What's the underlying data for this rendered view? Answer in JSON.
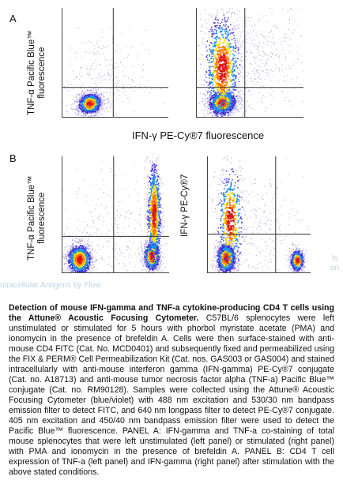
{
  "labels": {
    "panel_a": "A",
    "panel_b": "B",
    "ylabel_a_line1": "TNF-α Pacific Blue™",
    "ylabel_a_line2": "fluorescence",
    "ylabel_b_left_line1": "TNF-α Pacific Blue™",
    "ylabel_b_left_line2": "fluorescence",
    "ylabel_b_right": "IFN-γ PE-Cy®7",
    "xlabel_a": "IFN-γ PE-Cy®7 fluorescence",
    "ghost_text_left": "ntracellular Antigens by Flow",
    "ghost_text_right_1": "ls",
    "ghost_text_right_2": "on"
  },
  "caption": {
    "title": "Detection of mouse IFN-gamma and TNF-a cytokine-producing CD4 T cells using the Attune® Acoustic Focusing Cytometer.",
    "body": "C57BL/6 splenocytes were left unstimulated or stimulated for 5 hours with phorbol myristate acetate (PMA) and ionomycin in the presence of brefeldin A. Cells were then surface-stained with anti-mouse CD4 FITC (Cat. No. MCD0401) and subsequently fixed and permeabilized using the FIX & PERM® Cell Permeabilization Kit (Cat. nos. GAS003 or GAS004) and stained intracellularly with anti-mouse interferon gamma (IFN-gamma) PE-Cy®7 conjugate (Cat. no. A18713) and anti-mouse tumor necrosis factor alpha (TNF-a) Pacific Blue™ conjugate (Cat. no. RM90128). Samples were collected using the Attune® Acoustic Focusing Cytometer (blue/violet) with 488 nm excitation and 530/30 nm bandpass emission filter to detect FITC, and 640 nm longpass filter to detect PE-Cy®7 conjugate. 405 nm excitation and 450/40 nm bandpass emission filter were used to detect the Pacific Blue™ fluorescence. PANEL A: IFN-gamma and TNF-a co-staining of total mouse splenocytes that were left unstimulated (left panel) or stimulated (right panel) with PMA and ionomycin in the presence of brefeldin A. PANEL B: CD4 T cell expression of TNF-a (left panel) and IFN-gamma (right panel) after stimulation with the above stated conditions."
  },
  "colors": {
    "density_low": "#a99ce0",
    "density_mid": "#3b2fd6",
    "density_hi1": "#1f8fe8",
    "density_hi2": "#ffe000",
    "density_hi3": "#ff7a00",
    "density_peak": "#e01010",
    "gate": "#333333"
  },
  "chart_data": [
    {
      "type": "scatter",
      "panel": "A-left",
      "xlabel": "IFN-γ PE-Cy®7 fluorescence",
      "ylabel": "TNF-α Pacific Blue™ fluorescence",
      "xlim": [
        0,
        1
      ],
      "ylim": [
        0,
        1
      ],
      "gate": {
        "x": 0.48,
        "y": 0.27
      },
      "populations": [
        {
          "cx": 0.26,
          "cy": 0.12,
          "sx": 0.06,
          "sy": 0.05,
          "n": 1400,
          "rot": 0.35
        },
        {
          "cx": 0.35,
          "cy": 0.35,
          "sx": 0.22,
          "sy": 0.22,
          "n": 320,
          "rot": 0
        }
      ]
    },
    {
      "type": "scatter",
      "panel": "A-right",
      "xlabel": "IFN-γ PE-Cy®7 fluorescence",
      "ylabel": "TNF-α Pacific Blue™ fluorescence",
      "xlim": [
        0,
        1
      ],
      "ylim": [
        0,
        1
      ],
      "gate": {
        "x": 0.45,
        "y": 0.27
      },
      "populations": [
        {
          "cx": 0.24,
          "cy": 0.13,
          "sx": 0.07,
          "sy": 0.06,
          "n": 1400,
          "rot": 0.3
        },
        {
          "cx": 0.24,
          "cy": 0.45,
          "sx": 0.09,
          "sy": 0.28,
          "n": 900,
          "rot": 0
        },
        {
          "cx": 0.55,
          "cy": 0.55,
          "sx": 0.25,
          "sy": 0.25,
          "n": 500,
          "rot": 0
        }
      ]
    },
    {
      "type": "scatter",
      "panel": "B-left",
      "xlabel": "",
      "ylabel": "TNF-α Pacific Blue™ fluorescence",
      "xlim": [
        0,
        1
      ],
      "ylim": [
        0,
        1
      ],
      "gate": {
        "x": 0.48,
        "y": 0.31
      },
      "populations": [
        {
          "cx": 0.16,
          "cy": 0.11,
          "sx": 0.06,
          "sy": 0.07,
          "n": 1300,
          "rot": 0
        },
        {
          "cx": 0.84,
          "cy": 0.14,
          "sx": 0.04,
          "sy": 0.07,
          "n": 900,
          "rot": 0
        },
        {
          "cx": 0.86,
          "cy": 0.5,
          "sx": 0.035,
          "sy": 0.25,
          "n": 900,
          "rot": 0
        },
        {
          "cx": 0.5,
          "cy": 0.35,
          "sx": 0.25,
          "sy": 0.25,
          "n": 300,
          "rot": 0
        }
      ]
    },
    {
      "type": "scatter",
      "panel": "B-right",
      "xlabel": "",
      "ylabel": "IFN-γ PE-Cy®7",
      "xlim": [
        0,
        1
      ],
      "ylim": [
        0,
        1
      ],
      "gate": {
        "x": 0.66,
        "y": 0.33
      },
      "populations": [
        {
          "cx": 0.18,
          "cy": 0.12,
          "sx": 0.05,
          "sy": 0.07,
          "n": 1300,
          "rot": 0
        },
        {
          "cx": 0.87,
          "cy": 0.1,
          "sx": 0.035,
          "sy": 0.05,
          "n": 700,
          "rot": 0
        },
        {
          "cx": 0.22,
          "cy": 0.45,
          "sx": 0.07,
          "sy": 0.25,
          "n": 500,
          "rot": 0
        },
        {
          "cx": 0.45,
          "cy": 0.4,
          "sx": 0.25,
          "sy": 0.25,
          "n": 300,
          "rot": 0
        }
      ]
    }
  ]
}
